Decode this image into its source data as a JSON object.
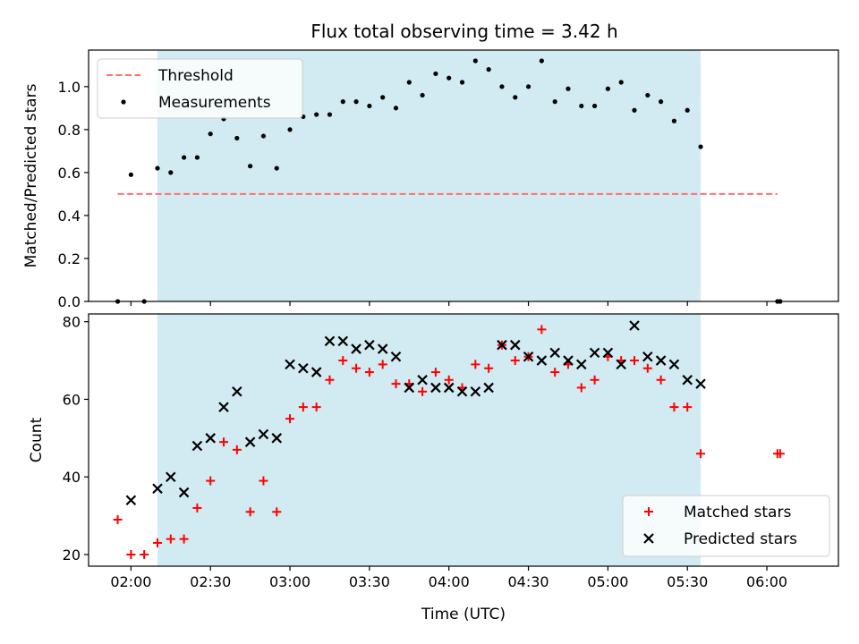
{
  "figure": {
    "title": "Flux total observing time = 3.42 h",
    "xlabel": "Time (UTC)"
  },
  "colors": {
    "shade": "#add8e6",
    "threshold": "#ff6f6f",
    "matched": "#ff0000",
    "predicted": "#000000",
    "measurement": "#000000"
  },
  "chart_data": [
    {
      "type": "scatter",
      "panel": "top",
      "ylabel": "Matched/Predicted stars",
      "xlim": [
        "01:44",
        "06:27"
      ],
      "ylim": [
        0,
        1.17
      ],
      "xticks": [
        "02:00",
        "02:30",
        "03:00",
        "03:30",
        "04:00",
        "04:30",
        "05:00",
        "05:30",
        "06:00"
      ],
      "yticks": [
        "0.0",
        "0.2",
        "0.4",
        "0.6",
        "0.8",
        "1.0"
      ],
      "shaded_interval": [
        "02:10",
        "05:35"
      ],
      "legend": {
        "position": "top-left",
        "entries": [
          "Threshold",
          "Measurements"
        ]
      },
      "threshold": {
        "name": "Threshold",
        "y": 0.5,
        "x_range": [
          "01:55",
          "06:04"
        ]
      },
      "series": [
        {
          "name": "Measurements",
          "points": [
            [
              "01:55",
              0.0
            ],
            [
              "02:00",
              0.59
            ],
            [
              "02:05",
              0.0
            ],
            [
              "02:10",
              0.62
            ],
            [
              "02:15",
              0.6
            ],
            [
              "02:20",
              0.67
            ],
            [
              "02:25",
              0.67
            ],
            [
              "02:30",
              0.78
            ],
            [
              "02:35",
              0.85
            ],
            [
              "02:40",
              0.76
            ],
            [
              "02:45",
              0.63
            ],
            [
              "02:50",
              0.77
            ],
            [
              "02:55",
              0.62
            ],
            [
              "03:00",
              0.8
            ],
            [
              "03:05",
              0.86
            ],
            [
              "03:10",
              0.87
            ],
            [
              "03:15",
              0.87
            ],
            [
              "03:20",
              0.93
            ],
            [
              "03:25",
              0.93
            ],
            [
              "03:30",
              0.91
            ],
            [
              "03:35",
              0.95
            ],
            [
              "03:40",
              0.9
            ],
            [
              "03:45",
              1.02
            ],
            [
              "03:50",
              0.96
            ],
            [
              "03:55",
              1.06
            ],
            [
              "04:00",
              1.04
            ],
            [
              "04:05",
              1.02
            ],
            [
              "04:10",
              1.12
            ],
            [
              "04:15",
              1.08
            ],
            [
              "04:20",
              1.0
            ],
            [
              "04:25",
              0.95
            ],
            [
              "04:30",
              1.0
            ],
            [
              "04:35",
              1.12
            ],
            [
              "04:40",
              0.93
            ],
            [
              "04:45",
              0.99
            ],
            [
              "04:50",
              0.91
            ],
            [
              "04:55",
              0.91
            ],
            [
              "05:00",
              0.99
            ],
            [
              "05:05",
              1.02
            ],
            [
              "05:10",
              0.89
            ],
            [
              "05:15",
              0.96
            ],
            [
              "05:20",
              0.93
            ],
            [
              "05:25",
              0.84
            ],
            [
              "05:30",
              0.89
            ],
            [
              "05:35",
              0.72
            ],
            [
              "06:04",
              0.0
            ],
            [
              "06:05",
              0.0
            ]
          ]
        }
      ]
    },
    {
      "type": "scatter",
      "panel": "bottom",
      "ylabel": "Count",
      "xlim": [
        "01:44",
        "06:27"
      ],
      "ylim": [
        17,
        82
      ],
      "xticks": [
        "02:00",
        "02:30",
        "03:00",
        "03:30",
        "04:00",
        "04:30",
        "05:00",
        "05:30",
        "06:00"
      ],
      "yticks": [
        "20",
        "40",
        "60",
        "80"
      ],
      "shaded_interval": [
        "02:10",
        "05:35"
      ],
      "legend": {
        "position": "bottom-right",
        "entries": [
          "Matched stars",
          "Predicted stars"
        ]
      },
      "series": [
        {
          "name": "Matched stars",
          "marker": "plus",
          "points": [
            [
              "01:55",
              29
            ],
            [
              "02:00",
              20
            ],
            [
              "02:05",
              20
            ],
            [
              "02:10",
              23
            ],
            [
              "02:15",
              24
            ],
            [
              "02:20",
              24
            ],
            [
              "02:25",
              32
            ],
            [
              "02:30",
              39
            ],
            [
              "02:35",
              49
            ],
            [
              "02:40",
              47
            ],
            [
              "02:45",
              31
            ],
            [
              "02:50",
              39
            ],
            [
              "02:55",
              31
            ],
            [
              "03:00",
              55
            ],
            [
              "03:05",
              58
            ],
            [
              "03:10",
              58
            ],
            [
              "03:15",
              65
            ],
            [
              "03:20",
              70
            ],
            [
              "03:25",
              68
            ],
            [
              "03:30",
              67
            ],
            [
              "03:35",
              69
            ],
            [
              "03:40",
              64
            ],
            [
              "03:45",
              64
            ],
            [
              "03:50",
              62
            ],
            [
              "03:55",
              67
            ],
            [
              "04:00",
              65
            ],
            [
              "04:05",
              63
            ],
            [
              "04:10",
              69
            ],
            [
              "04:15",
              68
            ],
            [
              "04:20",
              74
            ],
            [
              "04:25",
              70
            ],
            [
              "04:30",
              71
            ],
            [
              "04:35",
              78
            ],
            [
              "04:40",
              67
            ],
            [
              "04:45",
              69
            ],
            [
              "04:50",
              63
            ],
            [
              "04:55",
              65
            ],
            [
              "05:00",
              71
            ],
            [
              "05:05",
              70
            ],
            [
              "05:10",
              70
            ],
            [
              "05:15",
              68
            ],
            [
              "05:20",
              65
            ],
            [
              "05:25",
              58
            ],
            [
              "05:30",
              58
            ],
            [
              "05:35",
              46
            ],
            [
              "06:04",
              46
            ],
            [
              "06:05",
              46
            ]
          ]
        },
        {
          "name": "Predicted stars",
          "marker": "x",
          "points": [
            [
              "02:00",
              34
            ],
            [
              "02:10",
              37
            ],
            [
              "02:15",
              40
            ],
            [
              "02:20",
              36
            ],
            [
              "02:25",
              48
            ],
            [
              "02:30",
              50
            ],
            [
              "02:35",
              58
            ],
            [
              "02:40",
              62
            ],
            [
              "02:45",
              49
            ],
            [
              "02:50",
              51
            ],
            [
              "02:55",
              50
            ],
            [
              "03:00",
              69
            ],
            [
              "03:05",
              68
            ],
            [
              "03:10",
              67
            ],
            [
              "03:15",
              75
            ],
            [
              "03:20",
              75
            ],
            [
              "03:25",
              73
            ],
            [
              "03:30",
              74
            ],
            [
              "03:35",
              73
            ],
            [
              "03:40",
              71
            ],
            [
              "03:45",
              63
            ],
            [
              "03:50",
              65
            ],
            [
              "03:55",
              63
            ],
            [
              "04:00",
              63
            ],
            [
              "04:05",
              62
            ],
            [
              "04:10",
              62
            ],
            [
              "04:15",
              63
            ],
            [
              "04:20",
              74
            ],
            [
              "04:25",
              74
            ],
            [
              "04:30",
              71
            ],
            [
              "04:35",
              70
            ],
            [
              "04:40",
              72
            ],
            [
              "04:45",
              70
            ],
            [
              "04:50",
              69
            ],
            [
              "04:55",
              72
            ],
            [
              "05:00",
              72
            ],
            [
              "05:05",
              69
            ],
            [
              "05:10",
              79
            ],
            [
              "05:15",
              71
            ],
            [
              "05:20",
              70
            ],
            [
              "05:25",
              69
            ],
            [
              "05:30",
              65
            ],
            [
              "05:35",
              64
            ]
          ]
        }
      ]
    }
  ]
}
